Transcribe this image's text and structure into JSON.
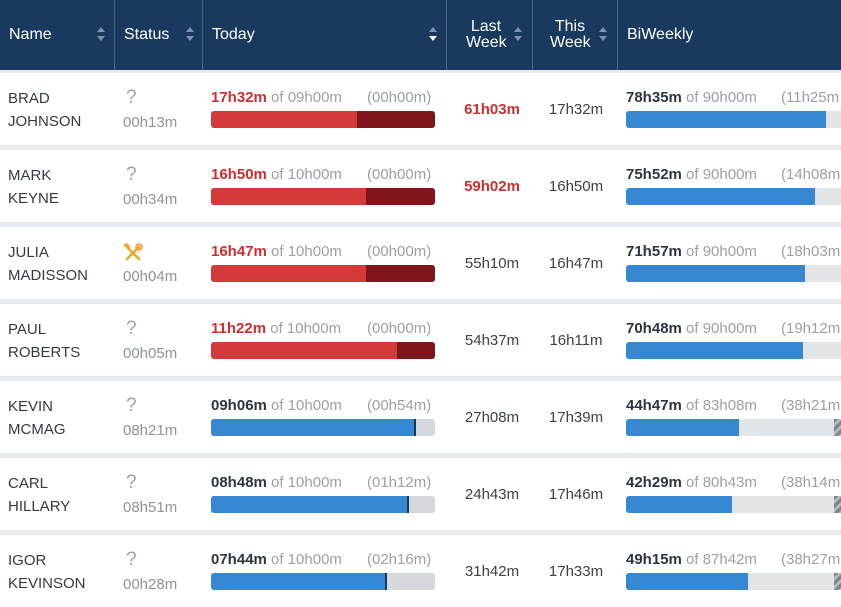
{
  "header": {
    "name": "Name",
    "status": "Status",
    "today": "Today",
    "last_week": "Last Week",
    "this_week": "This Week",
    "biweekly": "BiWeekly"
  },
  "colors": {
    "header_bg": "#193a5e",
    "over_primary": "#d43a3a",
    "over_secondary": "#7f161b",
    "under_fill": "#3588d1",
    "alert_text": "#cc2f2f"
  },
  "rows": [
    {
      "name": "BRAD\nJOHNSON",
      "status_icon": "question-icon",
      "status_time": "00h13m",
      "today_value": "17h32m",
      "today_of": " of 09h00m",
      "today_extra": "(00h00m)",
      "today_fill": 0.65,
      "today_over": 0.35,
      "today_over_flag": true,
      "last_week": "61h03m",
      "last_week_alert": true,
      "this_week": "17h32m",
      "bi_value": "78h35m",
      "bi_of": " of 90h00m",
      "bi_extra": "(11h25m",
      "bi_fill": 0.87,
      "bi_hatch": false
    },
    {
      "name": "MARK\nKEYNE",
      "status_icon": "question-icon",
      "status_time": "00h34m",
      "today_value": "16h50m",
      "today_of": " of 10h00m",
      "today_extra": "(00h00m)",
      "today_fill": 0.69,
      "today_over": 0.31,
      "today_over_flag": true,
      "last_week": "59h02m",
      "last_week_alert": true,
      "this_week": "16h50m",
      "bi_value": "75h52m",
      "bi_of": " of 90h00m",
      "bi_extra": "(14h08m",
      "bi_fill": 0.82,
      "bi_hatch": false
    },
    {
      "name": "JULIA\nMADISSON",
      "status_icon": "tools-icon",
      "status_time": "00h04m",
      "today_value": "16h47m",
      "today_of": " of 10h00m",
      "today_extra": "(00h00m)",
      "today_fill": 0.69,
      "today_over": 0.31,
      "today_over_flag": true,
      "last_week": "55h10m",
      "last_week_alert": false,
      "this_week": "16h47m",
      "bi_value": "71h57m",
      "bi_of": " of 90h00m",
      "bi_extra": "(18h03m",
      "bi_fill": 0.78,
      "bi_hatch": false
    },
    {
      "name": "PAUL\nROBERTS",
      "status_icon": "question-icon",
      "status_time": "00h05m",
      "today_value": "11h22m",
      "today_of": " of 10h00m",
      "today_extra": "(00h00m)",
      "today_fill": 0.83,
      "today_over": 0.17,
      "today_over_flag": true,
      "last_week": "54h37m",
      "last_week_alert": false,
      "this_week": "16h11m",
      "bi_value": "70h48m",
      "bi_of": " of 90h00m",
      "bi_extra": "(19h12m",
      "bi_fill": 0.77,
      "bi_hatch": false
    },
    {
      "name": "KEVIN\nMCMAG",
      "status_icon": "question-icon",
      "status_time": "08h21m",
      "today_value": "09h06m",
      "today_of": " of 10h00m",
      "today_extra": "(00h54m)",
      "today_fill": 0.91,
      "today_over": 0,
      "today_over_flag": false,
      "last_week": "27h08m",
      "last_week_alert": false,
      "this_week": "17h39m",
      "bi_value": "44h47m",
      "bi_of": " of 83h08m",
      "bi_extra": "(38h21m",
      "bi_fill": 0.49,
      "bi_hatch": true
    },
    {
      "name": "CARL\nHILLARY",
      "status_icon": "question-icon",
      "status_time": "08h51m",
      "today_value": "08h48m",
      "today_of": " of 10h00m",
      "today_extra": "(01h12m)",
      "today_fill": 0.88,
      "today_over": 0,
      "today_over_flag": false,
      "last_week": "24h43m",
      "last_week_alert": false,
      "this_week": "17h46m",
      "bi_value": "42h29m",
      "bi_of": " of 80h43m",
      "bi_extra": "(38h14m",
      "bi_fill": 0.46,
      "bi_hatch": true
    },
    {
      "name": "IGOR\nKEVINSON",
      "status_icon": "question-icon",
      "status_time": "00h28m",
      "today_value": "07h44m",
      "today_of": " of 10h00m",
      "today_extra": "(02h16m)",
      "today_fill": 0.78,
      "today_over": 0,
      "today_over_flag": false,
      "last_week": "31h42m",
      "last_week_alert": false,
      "this_week": "17h33m",
      "bi_value": "49h15m",
      "bi_of": " of 87h42m",
      "bi_extra": "(38h27m",
      "bi_fill": 0.53,
      "bi_hatch": true
    }
  ]
}
